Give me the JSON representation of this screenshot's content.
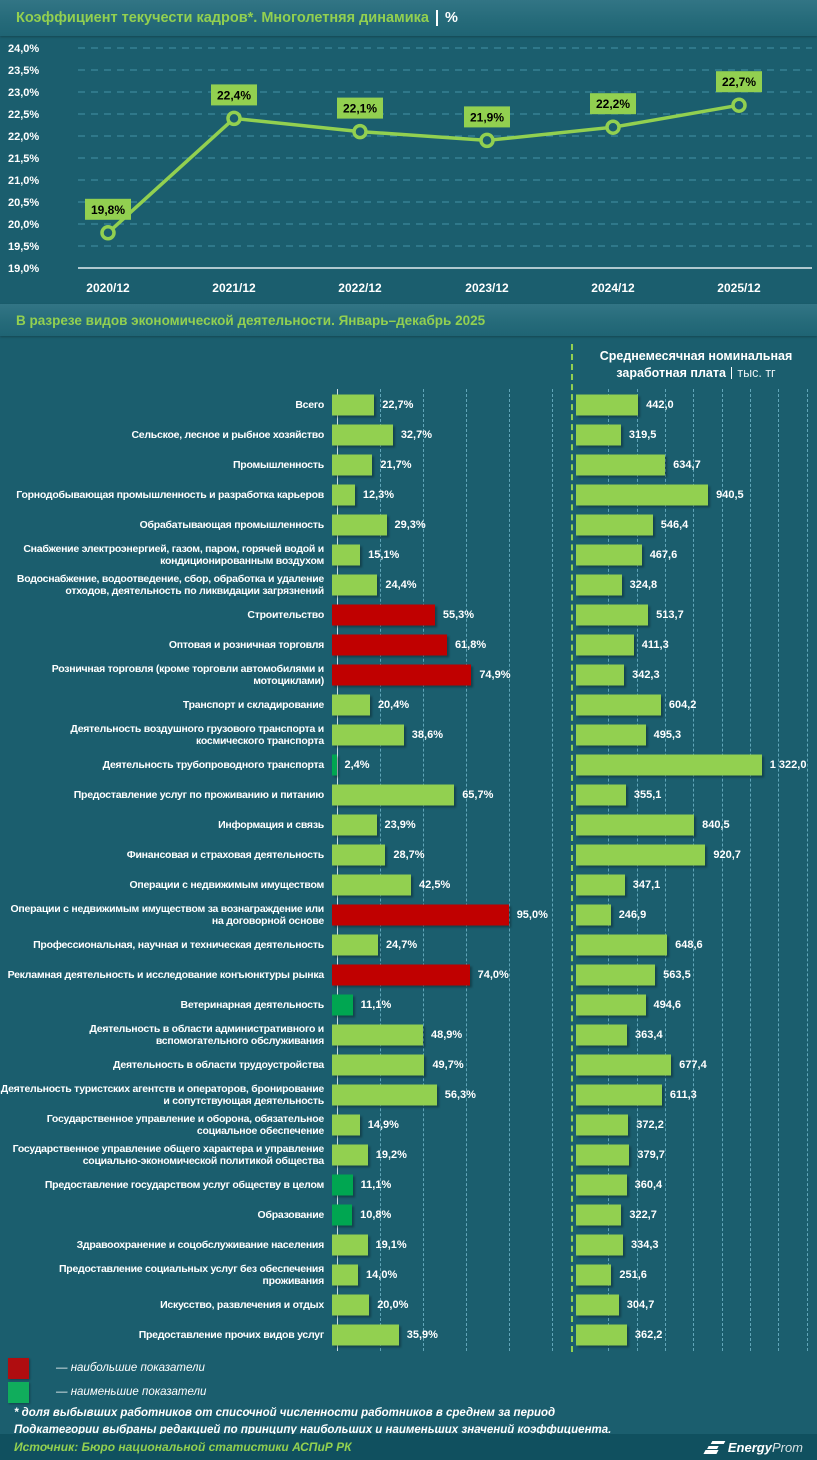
{
  "header": {
    "title": "Коэффициент текучести кадров*. Многолетняя динамика",
    "unit": "%"
  },
  "section2": {
    "title": "В разрезе видов экономической деятельности. Январь–декабрь 2025"
  },
  "salary_header": {
    "line1": "Среднемесячная номинальная",
    "line2": "заработная плата",
    "unit": "тыс. тг"
  },
  "colors": {
    "accent_green": "#92d050",
    "bar_green": "#92d050",
    "bar_red": "#c00000",
    "bar_low_green": "#00a651",
    "legend_red": "#b00d10",
    "legend_green": "#10ad5c",
    "grid_blue": "#4d9fb4",
    "background": "#1b5e6e"
  },
  "chart_data": [
    {
      "type": "line",
      "title": "Коэффициент текучести кадров*. Многолетняя динамика",
      "unit": "%",
      "x": [
        "2020/12",
        "2021/12",
        "2022/12",
        "2023/12",
        "2024/12",
        "2025/12"
      ],
      "values": [
        19.8,
        22.4,
        22.1,
        21.9,
        22.2,
        22.7
      ],
      "point_labels": [
        "19,8%",
        "22,4%",
        "22,1%",
        "21,9%",
        "22,2%",
        "22,7%"
      ],
      "ylim": [
        19.0,
        24.0
      ],
      "ytick_step": 0.5,
      "ytick_labels": [
        "24,0%",
        "23,5%",
        "23,0%",
        "22,5%",
        "22,0%",
        "21,5%",
        "21,0%",
        "20,5%",
        "20,0%",
        "19,5%",
        "19,0%"
      ],
      "grid": "horizontal-dashed",
      "legend_position": "none",
      "line_color": "#92d050"
    },
    {
      "type": "bar",
      "orientation": "horizontal",
      "title": "В разрезе видов экономической деятельности. Январь–декабрь 2025",
      "categories": [
        "Всего",
        "Сельское, лесное и рыбное хозяйство",
        "Промышленность",
        "Горнодобывающая промышленность и разработка карьеров",
        "Обрабатывающая промышленность",
        "Снабжение электроэнергией, газом, паром, горячей водой и кондиционированным воздухом",
        "Водоснабжение, водоотведение, сбор, обработка и удаление отходов, деятельность по ликвидации загрязнений",
        "Строительство",
        "Оптовая и розничная торговля",
        "Розничная торговля (кроме торговли автомобилями и мотоциклами)",
        "Транспорт и складирование",
        "Деятельность воздушного грузового транспорта и космического транспорта",
        "Деятельность трубопроводного транспорта",
        "Предоставление услуг по проживанию и питанию",
        "Информация и связь",
        "Финансовая и страховая деятельность",
        "Операции с недвижимым имуществом",
        "Операции с недвижимым имуществом за вознаграждение или на договорной основе",
        "Профессиональная, научная и техническая деятельность",
        "Рекламная деятельность и исследование конъюнктуры рынка",
        "Ветеринарная деятельность",
        "Деятельность в области административного и вспомогательного обслуживания",
        "Деятельность в области трудоустройства",
        "Деятельность туристских агентств и операторов, бронирование и сопутствующая деятельность",
        "Государственное управление и оборона, обязательное социальное обеспечение",
        "Государственное управление общего характера и управление социально-экономической политикой общества",
        "Предоставление государством услуг обществу в целом",
        "Образование",
        "Здравоохранение и соцобслуживание населения",
        "Предоставление социальных услуг без обеспечения проживания",
        "Искусство, развлечения и отдых",
        "Предоставление прочих видов услуг"
      ],
      "series": [
        {
          "name": "Коэффициент текучести кадров, %",
          "values": [
            22.7,
            32.7,
            21.7,
            12.3,
            29.3,
            15.1,
            24.4,
            55.3,
            61.8,
            74.9,
            20.4,
            38.6,
            2.4,
            65.7,
            23.9,
            28.7,
            42.5,
            95.0,
            24.7,
            74.0,
            11.1,
            48.9,
            49.7,
            56.3,
            14.9,
            19.2,
            11.1,
            10.8,
            19.1,
            14.0,
            20.0,
            35.9
          ],
          "labels": [
            "22,7%",
            "32,7%",
            "21,7%",
            "12,3%",
            "29,3%",
            "15,1%",
            "24,4%",
            "55,3%",
            "61,8%",
            "74,9%",
            "20,4%",
            "38,6%",
            "2,4%",
            "65,7%",
            "23,9%",
            "28,7%",
            "42,5%",
            "95,0%",
            "24,7%",
            "74,0%",
            "11,1%",
            "48,9%",
            "49,7%",
            "56,3%",
            "14,9%",
            "19,2%",
            "11,1%",
            "10,8%",
            "19,1%",
            "14,0%",
            "20,0%",
            "35,9%"
          ],
          "flags": [
            "",
            "",
            "",
            "",
            "",
            "",
            "",
            "high",
            "high",
            "high",
            "",
            "",
            "low",
            "",
            "",
            "",
            "",
            "high",
            "",
            "high",
            "low",
            "",
            "",
            "",
            "",
            "",
            "low",
            "low",
            "",
            "",
            "",
            ""
          ]
        },
        {
          "name": "Среднемесячная номинальная заработная плата, тыс. тг",
          "values": [
            442.0,
            319.5,
            634.7,
            940.5,
            546.4,
            467.6,
            324.8,
            513.7,
            411.3,
            342.3,
            604.2,
            495.3,
            1322.0,
            355.1,
            840.5,
            920.7,
            347.1,
            246.9,
            648.6,
            563.5,
            494.6,
            363.4,
            677.4,
            611.3,
            372.2,
            379.7,
            360.4,
            322.7,
            334.3,
            251.6,
            304.7,
            362.2
          ],
          "labels": [
            "442,0",
            "319,5",
            "634,7",
            "940,5",
            "546,4",
            "467,6",
            "324,8",
            "513,7",
            "411,3",
            "342,3",
            "604,2",
            "495,3",
            "1 322,0",
            "355,1",
            "840,5",
            "920,7",
            "347,1",
            "246,9",
            "648,6",
            "563,5",
            "494,6",
            "363,4",
            "677,4",
            "611,3",
            "372,2",
            "379,7",
            "360,4",
            "322,7",
            "334,3",
            "251,6",
            "304,7",
            "362,2"
          ]
        }
      ]
    }
  ],
  "legend": [
    {
      "color": "#b00d10",
      "label": "— наибольшие показатели"
    },
    {
      "color": "#10ad5c",
      "label": "— наименьшие показатели"
    }
  ],
  "footnotes": [
    "* доля выбывших работников от списочной численности работников в среднем за период",
    "Подкатегории выбраны редакцией по принципу наибольших и наименьших значений коэффициента."
  ],
  "source": "Источник: Бюро национальной статистики АСПиР РК",
  "logo": {
    "bold": "Energy",
    "light": "Prom"
  }
}
